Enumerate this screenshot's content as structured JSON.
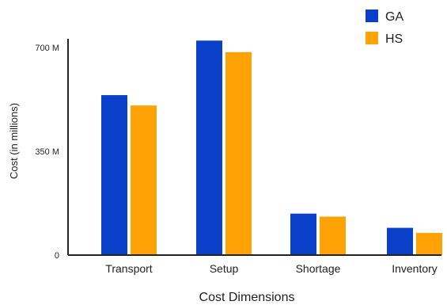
{
  "chart_data": {
    "type": "bar",
    "title": "",
    "xlabel": "Cost Dimensions",
    "ylabel": "Cost (in millions)",
    "categories": [
      "Transport",
      "Setup",
      "Shortage",
      "Inventory"
    ],
    "series": [
      {
        "name": "GA",
        "color": "#0a3fc9",
        "values": [
          540,
          724,
          140,
          92
        ]
      },
      {
        "name": "HS",
        "color": "#ffa205",
        "values": [
          505,
          685,
          130,
          75
        ]
      }
    ],
    "ylim": [
      0,
      730
    ],
    "y_ticks": [
      {
        "value": 0,
        "label": "0"
      },
      {
        "value": 350,
        "label": "350 M"
      },
      {
        "value": 700,
        "label": "700 M"
      }
    ],
    "grid": false,
    "legend_position": "top-right"
  }
}
